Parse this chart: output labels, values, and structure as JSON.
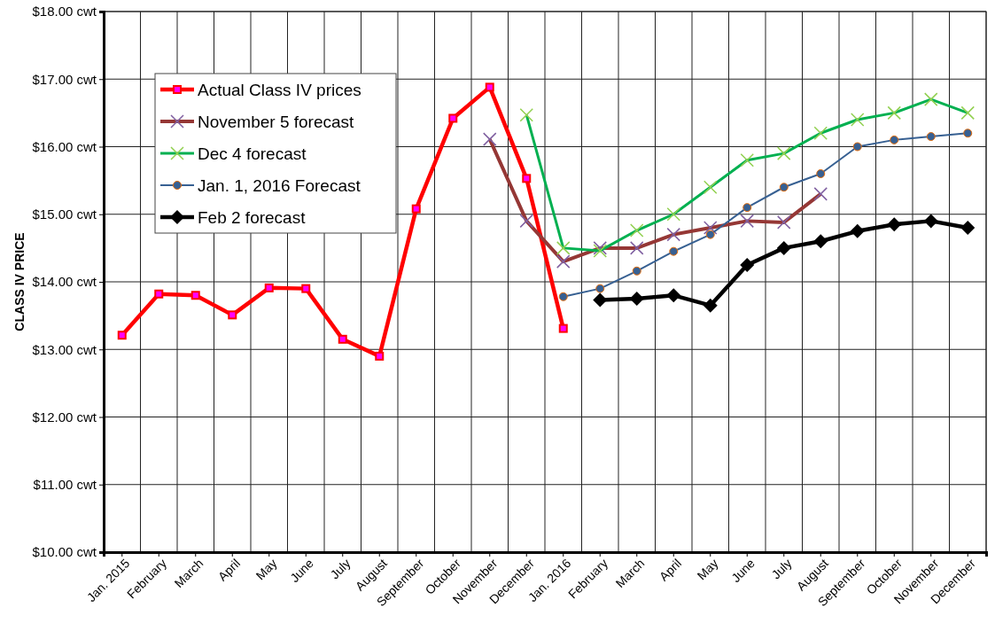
{
  "chart_data": {
    "type": "line",
    "ylabel": "CLASS  IV PRICE",
    "categories": [
      "Jan. 2015",
      "February",
      "March",
      "April",
      "May",
      "June",
      "July",
      "August",
      "September",
      "October",
      "November",
      "December",
      "Jan. 2016",
      "February",
      "March",
      "April",
      "May",
      "June",
      "July",
      "August",
      "September",
      "October",
      "November",
      "December"
    ],
    "series": [
      {
        "name": "Actual Class IV prices",
        "color": "#ff0000",
        "marker": "square",
        "values": [
          13.21,
          13.82,
          13.8,
          13.51,
          13.91,
          13.9,
          13.15,
          12.9,
          15.08,
          16.42,
          16.88,
          15.53,
          13.31,
          null,
          null,
          null,
          null,
          null,
          null,
          null,
          null,
          null,
          null,
          null
        ]
      },
      {
        "name": "November 5 forecast",
        "color": "#953735",
        "marker": "cross",
        "values": [
          null,
          null,
          null,
          null,
          null,
          null,
          null,
          null,
          null,
          null,
          16.11,
          14.9,
          14.3,
          14.5,
          14.5,
          14.7,
          14.8,
          14.9,
          14.88,
          15.3,
          null,
          null,
          null,
          null
        ]
      },
      {
        "name": "Dec 4 forecast",
        "color": "#00b050",
        "marker": "cross",
        "values": [
          null,
          null,
          null,
          null,
          null,
          null,
          null,
          null,
          null,
          null,
          null,
          16.47,
          14.5,
          14.46,
          14.76,
          15.0,
          15.4,
          15.8,
          15.9,
          16.2,
          16.4,
          16.5,
          16.7,
          16.5
        ]
      },
      {
        "name": "Jan. 1, 2016 Forecast",
        "color": "#376092",
        "marker": "circle",
        "values": [
          null,
          null,
          null,
          null,
          null,
          null,
          null,
          null,
          null,
          null,
          null,
          null,
          13.78,
          13.9,
          14.16,
          14.45,
          14.7,
          15.1,
          15.4,
          15.6,
          16.0,
          16.1,
          16.15,
          16.2
        ]
      },
      {
        "name": "Feb 2 forecast",
        "color": "#000000",
        "marker": "diamond",
        "values": [
          null,
          null,
          null,
          null,
          null,
          null,
          null,
          null,
          null,
          null,
          null,
          null,
          null,
          13.73,
          13.75,
          13.8,
          13.65,
          14.25,
          14.5,
          14.6,
          14.75,
          14.85,
          14.9,
          14.8
        ]
      }
    ],
    "ylim": [
      10,
      18
    ],
    "yticks": [
      {
        "value": 10,
        "label": "$10.00 cwt"
      },
      {
        "value": 11,
        "label": "$11.00 cwt"
      },
      {
        "value": 12,
        "label": "$12.00 cwt"
      },
      {
        "value": 13,
        "label": "$13.00 cwt"
      },
      {
        "value": 14,
        "label": "$14.00 cwt"
      },
      {
        "value": 15,
        "label": "$15.00 cwt"
      },
      {
        "value": 16,
        "label": "$16.00 cwt"
      },
      {
        "value": 17,
        "label": "$17.00 cwt"
      },
      {
        "value": 18,
        "label": "$18.00 cwt"
      }
    ],
    "grid": true,
    "legend": "top left",
    "line_style": "solid"
  }
}
